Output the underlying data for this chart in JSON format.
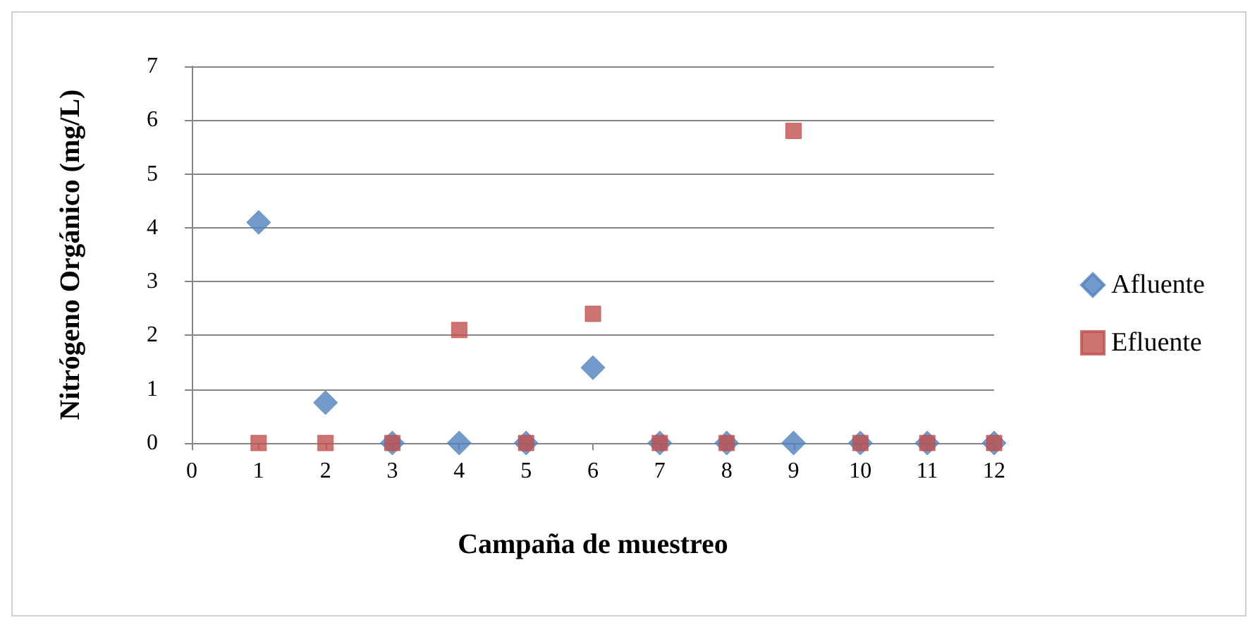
{
  "chart_data": {
    "type": "scatter",
    "xlabel": "Campaña de muestreo",
    "ylabel": "Nitrógeno Orgánico (mg/L)",
    "series": [
      {
        "name": "Afluente",
        "color": "#4f81bd",
        "marker": "diamond",
        "x": [
          1,
          2,
          3,
          4,
          5,
          6,
          7,
          8,
          9,
          10,
          11,
          12
        ],
        "values": [
          4.1,
          0.75,
          0,
          0,
          0,
          1.4,
          0,
          0,
          0,
          0,
          0,
          0
        ]
      },
      {
        "name": "Efluente",
        "color": "#c0504d",
        "marker": "square",
        "x": [
          1,
          2,
          3,
          4,
          5,
          6,
          7,
          8,
          9,
          10,
          11,
          12
        ],
        "values": [
          0,
          0,
          0,
          2.1,
          0,
          2.4,
          0,
          0,
          5.8,
          0,
          0,
          0
        ]
      }
    ],
    "xlim": [
      0,
      12
    ],
    "xticks": [
      0,
      1,
      2,
      3,
      4,
      5,
      6,
      7,
      8,
      9,
      10,
      11,
      12
    ],
    "ylim": [
      0,
      7
    ],
    "yticks": [
      0,
      1,
      2,
      3,
      4,
      5,
      6,
      7
    ],
    "grid": "y",
    "legend": "right"
  }
}
